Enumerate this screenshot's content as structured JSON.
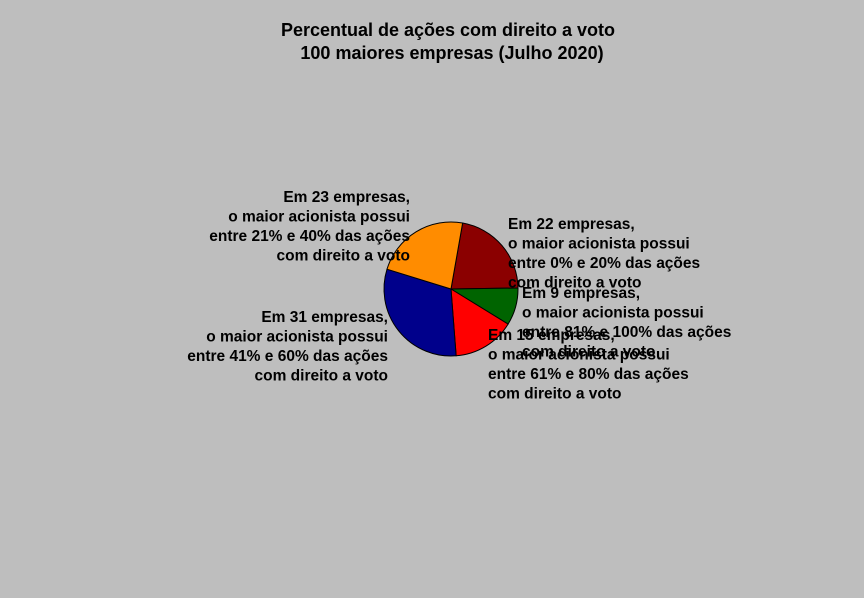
{
  "chart_data": {
    "type": "pie",
    "title": "Percentual de ações com direito a voto",
    "subtitle": "100 maiores empresas (Julho 2020)",
    "start_angle_deg": 80,
    "direction": "clockwise",
    "slices": [
      {
        "value": 22,
        "color": "#8b0000",
        "label": [
          "Em 22 empresas,",
          "o maior acionista possui",
          "entre 0% e 20% das ações",
          "com direito a voto"
        ]
      },
      {
        "value": 9,
        "color": "#006400",
        "label": [
          "Em 9 empresas,",
          "o maior acionista possui",
          "entre 81% e 100% das ações",
          "com direito a voto"
        ]
      },
      {
        "value": 15,
        "color": "#ff0000",
        "label": [
          "Em 15 empresas,",
          "o maior acionista possui",
          "entre 61% e 80% das ações",
          "com direito a voto"
        ]
      },
      {
        "value": 31,
        "color": "#00008b",
        "label": [
          "Em 31 empresas,",
          "o maior acionista possui",
          "entre 41% e 60% das ações",
          "com direito a voto"
        ]
      },
      {
        "value": 23,
        "color": "#ff8c00",
        "label": [
          "Em 23 empresas,",
          "o maior acionista possui",
          "entre 21% e 40% das ações",
          "com direito a voto"
        ]
      }
    ]
  }
}
